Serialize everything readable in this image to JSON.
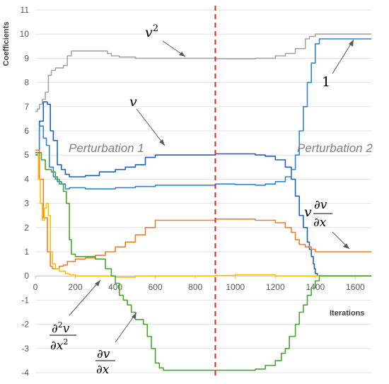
{
  "chart_data": {
    "type": "line",
    "ylabel": "Coefficients",
    "xlabel": "Iterations",
    "xlim": [
      0,
      1680
    ],
    "ylim": [
      -4,
      11
    ],
    "x_ticks": [
      0,
      200,
      400,
      600,
      800,
      1000,
      1200,
      1400,
      1600
    ],
    "y_ticks": [
      -4,
      -3,
      -2,
      -1,
      0,
      1,
      2,
      3,
      4,
      5,
      6,
      7,
      8,
      9,
      10,
      11
    ],
    "grid": "horizontal",
    "divider": {
      "x": 900,
      "color": "#e0281e",
      "style": "dashed"
    },
    "regions": [
      {
        "label": "Perturbation 1"
      },
      {
        "label": "Perturbation 2"
      }
    ],
    "series": [
      {
        "name": "v^2",
        "color": "#a5a5a5",
        "points": [
          [
            0,
            6.8
          ],
          [
            10,
            6.9
          ],
          [
            20,
            7.1
          ],
          [
            35,
            7.3
          ],
          [
            50,
            7.6
          ],
          [
            65,
            8.3
          ],
          [
            80,
            8.5
          ],
          [
            100,
            8.6
          ],
          [
            140,
            8.7
          ],
          [
            160,
            9.1
          ],
          [
            180,
            9.3
          ],
          [
            200,
            9.3
          ],
          [
            300,
            9.3
          ],
          [
            340,
            9.3
          ],
          [
            360,
            9.2
          ],
          [
            380,
            9.1
          ],
          [
            420,
            9.05
          ],
          [
            500,
            9.0
          ],
          [
            600,
            9.0
          ],
          [
            900,
            8.98
          ],
          [
            1100,
            9.0
          ],
          [
            1200,
            9.1
          ],
          [
            1250,
            9.2
          ],
          [
            1300,
            9.4
          ],
          [
            1350,
            9.8
          ],
          [
            1370,
            9.9
          ],
          [
            1400,
            10.0
          ],
          [
            1680,
            10.0
          ]
        ]
      },
      {
        "name": "v",
        "color": "#1f5fc0",
        "points": [
          [
            0,
            5.0
          ],
          [
            20,
            6.4
          ],
          [
            40,
            7.2
          ],
          [
            60,
            7.1
          ],
          [
            75,
            6.0
          ],
          [
            90,
            5.6
          ],
          [
            110,
            4.6
          ],
          [
            130,
            4.4
          ],
          [
            150,
            4.2
          ],
          [
            170,
            4.1
          ],
          [
            250,
            4.15
          ],
          [
            320,
            4.3
          ],
          [
            400,
            4.4
          ],
          [
            450,
            4.5
          ],
          [
            500,
            4.6
          ],
          [
            550,
            4.9
          ],
          [
            600,
            5.0
          ],
          [
            900,
            5.05
          ],
          [
            1100,
            5.0
          ],
          [
            1150,
            4.95
          ],
          [
            1200,
            4.8
          ],
          [
            1250,
            4.5
          ],
          [
            1280,
            4.0
          ],
          [
            1300,
            3.3
          ],
          [
            1320,
            2.5
          ],
          [
            1340,
            2.0
          ],
          [
            1360,
            1.4
          ],
          [
            1370,
            1.1
          ],
          [
            1380,
            0.8
          ],
          [
            1390,
            0.5
          ],
          [
            1395,
            0.3
          ],
          [
            1400,
            0.1
          ],
          [
            1410,
            0.0
          ],
          [
            1680,
            0.0
          ]
        ]
      },
      {
        "name": "1",
        "color": "#2e86d6",
        "points": [
          [
            0,
            5.0
          ],
          [
            20,
            6.2
          ],
          [
            40,
            5.7
          ],
          [
            55,
            5.4
          ],
          [
            70,
            4.5
          ],
          [
            90,
            4.1
          ],
          [
            110,
            3.9
          ],
          [
            130,
            3.8
          ],
          [
            150,
            3.6
          ],
          [
            170,
            3.65
          ],
          [
            250,
            3.6
          ],
          [
            400,
            3.65
          ],
          [
            500,
            3.7
          ],
          [
            600,
            3.75
          ],
          [
            900,
            3.8
          ],
          [
            1000,
            3.78
          ],
          [
            1100,
            3.75
          ],
          [
            1150,
            3.8
          ],
          [
            1200,
            3.9
          ],
          [
            1250,
            4.1
          ],
          [
            1280,
            4.4
          ],
          [
            1300,
            5.0
          ],
          [
            1320,
            6.0
          ],
          [
            1340,
            7.0
          ],
          [
            1360,
            8.0
          ],
          [
            1380,
            8.8
          ],
          [
            1400,
            9.6
          ],
          [
            1420,
            9.8
          ],
          [
            1680,
            9.8
          ]
        ]
      },
      {
        "name": "v dv/dx",
        "color": "#f07d2a",
        "points": [
          [
            0,
            5.2
          ],
          [
            20,
            4.0
          ],
          [
            40,
            2.4
          ],
          [
            60,
            1.0
          ],
          [
            75,
            0.4
          ],
          [
            85,
            0.3
          ],
          [
            100,
            0.3
          ],
          [
            120,
            0.4
          ],
          [
            140,
            0.45
          ],
          [
            160,
            0.6
          ],
          [
            200,
            0.7
          ],
          [
            250,
            0.75
          ],
          [
            300,
            0.85
          ],
          [
            350,
            1.0
          ],
          [
            400,
            1.2
          ],
          [
            450,
            1.4
          ],
          [
            500,
            1.7
          ],
          [
            550,
            2.0
          ],
          [
            600,
            2.3
          ],
          [
            900,
            2.35
          ],
          [
            1100,
            2.3
          ],
          [
            1200,
            2.2
          ],
          [
            1250,
            2.0
          ],
          [
            1280,
            1.8
          ],
          [
            1300,
            1.5
          ],
          [
            1320,
            1.3
          ],
          [
            1350,
            1.2
          ],
          [
            1380,
            1.1
          ],
          [
            1400,
            1.0
          ],
          [
            1680,
            1.0
          ]
        ]
      },
      {
        "name": "d2v/dx2",
        "color": "#ffbf00",
        "points": [
          [
            0,
            5.1
          ],
          [
            15,
            4.0
          ],
          [
            25,
            3.0
          ],
          [
            35,
            2.3
          ],
          [
            45,
            2.8
          ],
          [
            55,
            3.0
          ],
          [
            65,
            2.5
          ],
          [
            75,
            1.0
          ],
          [
            85,
            0.5
          ],
          [
            100,
            0.3
          ],
          [
            120,
            0.2
          ],
          [
            150,
            0.1
          ],
          [
            170,
            0.05
          ],
          [
            200,
            0.0
          ],
          [
            300,
            0.0
          ],
          [
            400,
            -0.05
          ],
          [
            500,
            0.0
          ],
          [
            600,
            0.0
          ],
          [
            900,
            0.02
          ],
          [
            1000,
            0.05
          ],
          [
            1200,
            0.0
          ],
          [
            1300,
            0.0
          ],
          [
            1400,
            0.0
          ],
          [
            1680,
            0.0
          ]
        ]
      },
      {
        "name": "dv/dx",
        "color": "#4aa52e",
        "points": [
          [
            0,
            5.1
          ],
          [
            30,
            4.8
          ],
          [
            50,
            4.4
          ],
          [
            80,
            4.3
          ],
          [
            100,
            4.0
          ],
          [
            120,
            3.8
          ],
          [
            140,
            3.5
          ],
          [
            155,
            3.0
          ],
          [
            170,
            1.5
          ],
          [
            180,
            0.9
          ],
          [
            200,
            0.8
          ],
          [
            250,
            0.8
          ],
          [
            300,
            0.7
          ],
          [
            350,
            0.3
          ],
          [
            380,
            0.0
          ],
          [
            400,
            -0.3
          ],
          [
            420,
            -0.8
          ],
          [
            440,
            -1.0
          ],
          [
            460,
            -1.2
          ],
          [
            480,
            -1.5
          ],
          [
            500,
            -1.8
          ],
          [
            540,
            -2.0
          ],
          [
            560,
            -2.5
          ],
          [
            580,
            -3.0
          ],
          [
            600,
            -3.6
          ],
          [
            620,
            -3.8
          ],
          [
            640,
            -3.9
          ],
          [
            900,
            -3.9
          ],
          [
            1000,
            -3.9
          ],
          [
            1100,
            -3.85
          ],
          [
            1150,
            -3.7
          ],
          [
            1200,
            -3.5
          ],
          [
            1230,
            -3.2
          ],
          [
            1250,
            -3.0
          ],
          [
            1270,
            -2.5
          ],
          [
            1300,
            -2.0
          ],
          [
            1320,
            -1.5
          ],
          [
            1340,
            -1.2
          ],
          [
            1360,
            -0.8
          ],
          [
            1380,
            -0.5
          ],
          [
            1400,
            -0.2
          ],
          [
            1420,
            0.0
          ],
          [
            1680,
            0.0
          ]
        ]
      }
    ]
  }
}
